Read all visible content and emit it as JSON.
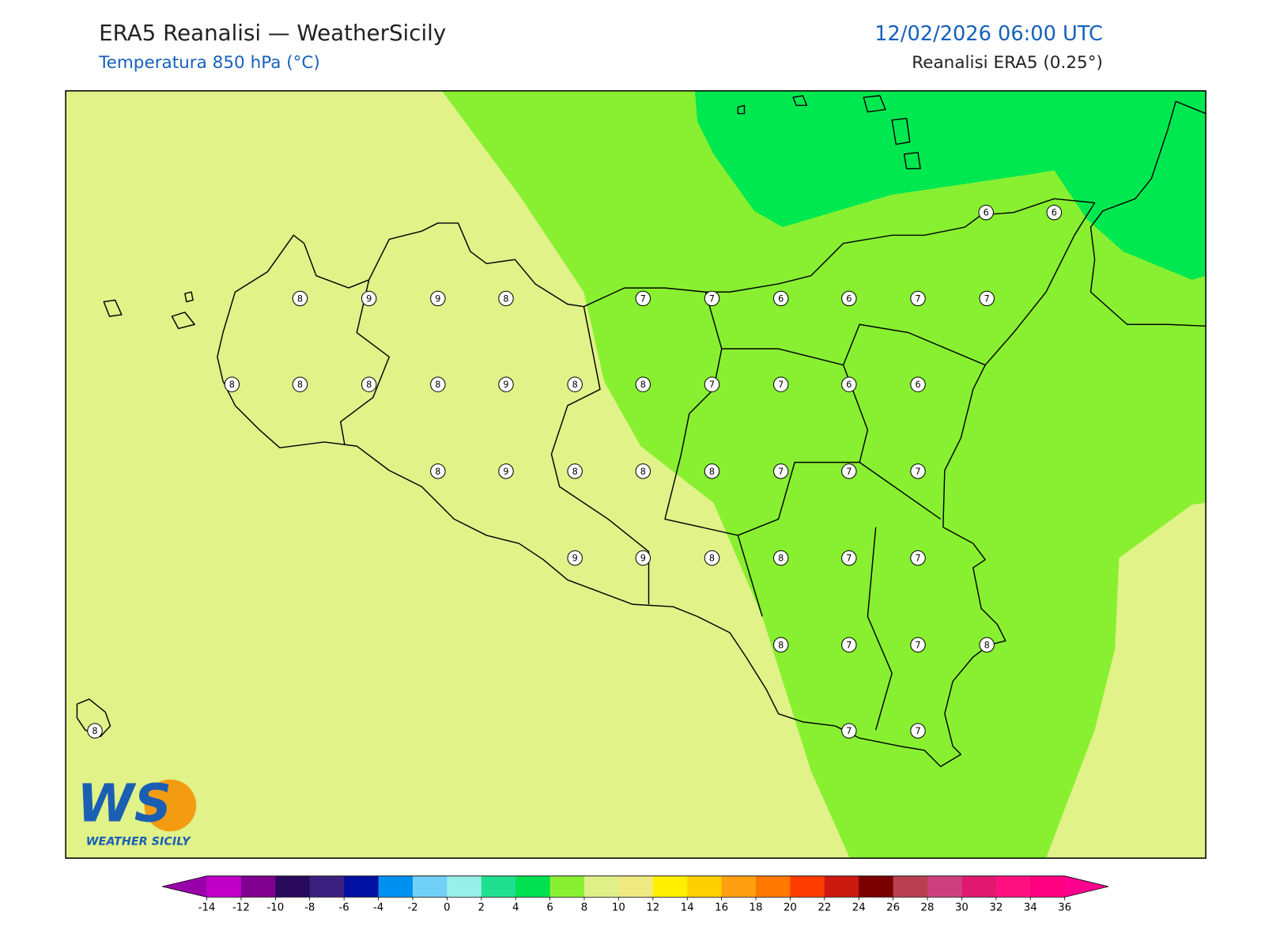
{
  "header": {
    "title": "ERA5 Reanalisi — WeatherSicily",
    "subtitle": "Temperatura 850 hPa (°C)",
    "datetime": "12/02/2026 06:00 UTC",
    "source": "Reanalisi ERA5 (0.25°)"
  },
  "map": {
    "fill_colors": {
      "8_10": "#e0f288",
      "6_8": "#88f030",
      "4_6": "#00e850"
    },
    "stations": {
      "values": [
        6,
        6,
        8,
        9,
        9,
        8,
        7,
        7,
        6,
        6,
        7,
        7,
        8,
        8,
        8,
        8,
        9,
        8,
        8,
        7,
        7,
        6,
        6,
        8,
        9,
        8,
        8,
        8,
        7,
        7,
        7,
        9,
        9,
        8,
        8,
        7,
        7,
        8,
        7,
        7,
        8,
        7,
        7,
        8
      ]
    }
  },
  "logo": {
    "text": "WS",
    "caption": "WEATHER SICILY"
  },
  "colorbar": {
    "ticks": [
      -14,
      -12,
      -10,
      -8,
      -6,
      -4,
      -2,
      0,
      2,
      4,
      6,
      8,
      10,
      12,
      14,
      16,
      18,
      20,
      22,
      24,
      26,
      28,
      30,
      32,
      34,
      36
    ],
    "colors": [
      "#c000c8",
      "#800090",
      "#2a0a5a",
      "#3c2080",
      "#0010a0",
      "#0090f0",
      "#70d0f8",
      "#98f0e8",
      "#20e090",
      "#00e050",
      "#88f030",
      "#e0f088",
      "#f0e880",
      "#fff000",
      "#ffd000",
      "#ffa010",
      "#ff7800",
      "#ff3c00",
      "#cc1a10",
      "#7a0000",
      "#b84050",
      "#cc4080",
      "#e01870",
      "#ff1080",
      "#ff0080"
    ],
    "extend_colors": [
      "#9900aa",
      "#ff0090"
    ]
  }
}
